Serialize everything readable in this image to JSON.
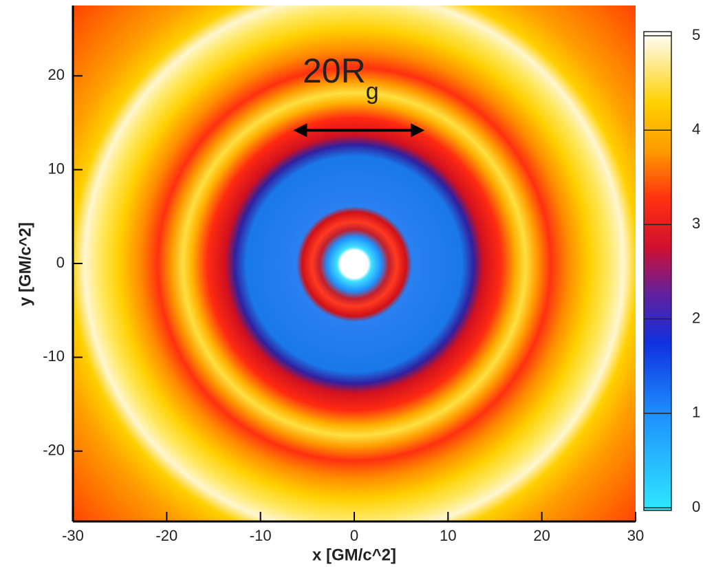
{
  "chart_data": {
    "type": "contour",
    "xlabel": "x [GM/c^2]",
    "ylabel": "y [GM/c^2]",
    "xlim": [
      -30,
      30
    ],
    "xticks": [
      -30,
      -20,
      -10,
      0,
      10,
      20,
      30
    ],
    "ylim": [
      -27.5,
      27.5
    ],
    "yticks": [
      -20,
      -10,
      0,
      10,
      20
    ],
    "colorbar": {
      "lim": [
        0,
        5
      ],
      "ticks": [
        0,
        1,
        2,
        3,
        4,
        5
      ]
    },
    "annotation": {
      "text": "20R",
      "subscript": "g",
      "x": [
        -6.5,
        7.5
      ],
      "y": 14.2
    }
  }
}
